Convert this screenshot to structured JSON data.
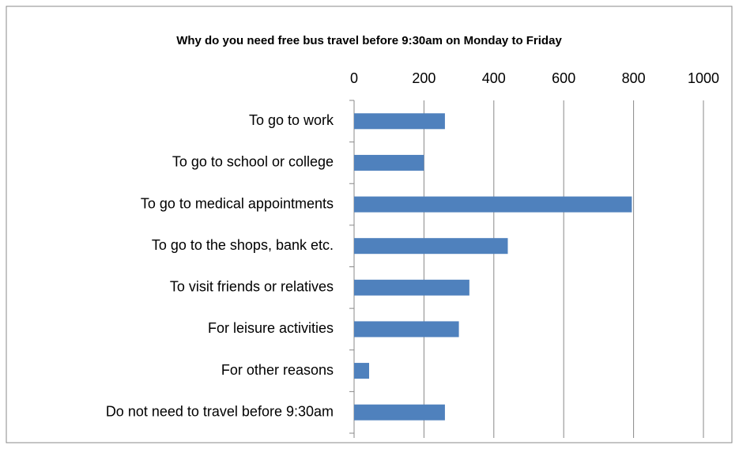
{
  "chart_data": {
    "type": "bar",
    "orientation": "horizontal",
    "title": "Why do you need free bus travel before 9:30am on Monday to Friday",
    "categories": [
      "To go to work",
      "To go to school or college",
      "To go to medical appointments",
      "To go to the shops, bank etc.",
      "To visit friends or relatives",
      "For leisure activities",
      "For other reasons",
      "Do not need to travel before 9:30am"
    ],
    "values": [
      260,
      200,
      795,
      440,
      330,
      300,
      43,
      260
    ],
    "color": "#4f81bd",
    "xlim": [
      0,
      1000
    ],
    "xticks": [
      0,
      200,
      400,
      600,
      800,
      1000
    ],
    "grid": true
  }
}
